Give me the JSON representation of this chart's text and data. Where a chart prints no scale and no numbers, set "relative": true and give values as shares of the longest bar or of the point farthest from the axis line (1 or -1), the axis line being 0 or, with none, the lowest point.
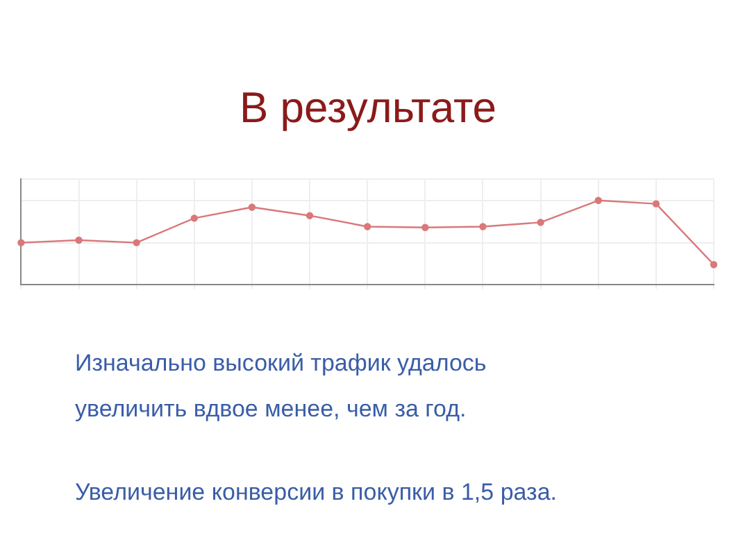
{
  "chart_data": {
    "type": "line",
    "title": "В результате",
    "categories": [
      null,
      null,
      null,
      null,
      null,
      null,
      null,
      null,
      null,
      null,
      null,
      null,
      null
    ],
    "relative": true,
    "series": [
      {
        "color": "#d9787a",
        "values": [
          0.5,
          0.53,
          0.5,
          0.79,
          0.92,
          0.82,
          0.69,
          0.68,
          0.69,
          0.74,
          1,
          0.96,
          0.24
        ]
      }
    ],
    "grid": true,
    "legend": false,
    "marker": "circle",
    "line_style": "solid",
    "annotations": [
      "Изначально высокий трафик удалось",
      "увеличить вдвое менее, чем за год.",
      "Увеличение конверсии в покупки в 1,5 раза."
    ]
  }
}
